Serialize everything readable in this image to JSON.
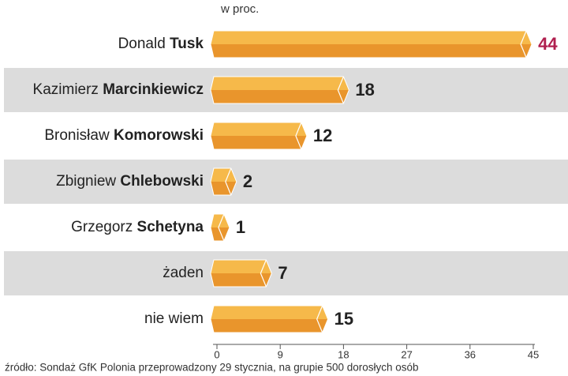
{
  "chart_data": {
    "type": "bar",
    "orientation": "horizontal",
    "x_label": "w proc.",
    "categories": [
      "Donald Tusk",
      "Kazimierz Marcinkiewicz",
      "Bronisław Komorowski",
      "Zbigniew Chlebowski",
      "Grzegorz Schetyna",
      "żaden",
      "nie wiem"
    ],
    "values": [
      44,
      18,
      12,
      2,
      1,
      7,
      15
    ],
    "value_label_colors": [
      "#b0204f",
      "#222222",
      "#222222",
      "#222222",
      "#222222",
      "#222222",
      "#222222"
    ],
    "colors": {
      "top": "#f6b94a",
      "bottom": "#e9952c"
    },
    "band_color": "#dcdcdc",
    "xlim": [
      0,
      45
    ],
    "xticks": [
      0,
      9,
      18,
      27,
      36,
      45
    ],
    "source": "źródło: Sondaż GfK Polonia przeprowadzony 29 stycznia, na grupie 500 dorosłych osób"
  }
}
